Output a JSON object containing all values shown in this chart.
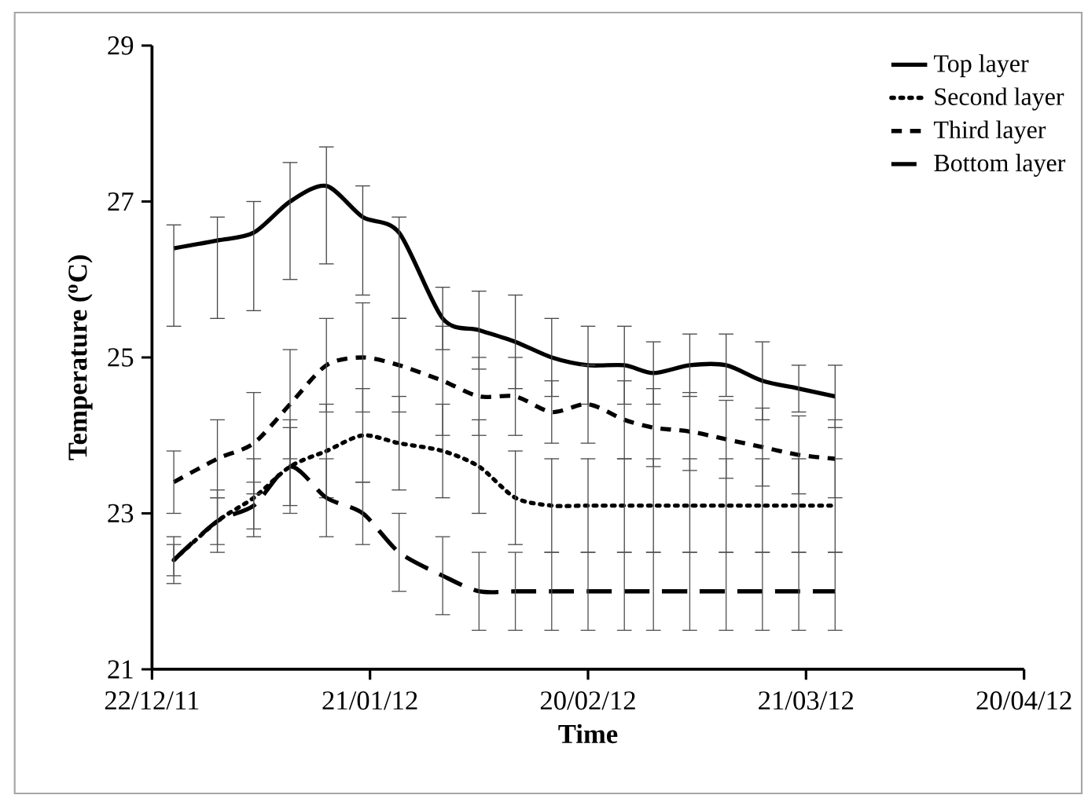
{
  "chart_data": {
    "type": "line",
    "xlabel": "Time",
    "ylabel": "Temperature ($^{o}$C)",
    "x": [
      "2011-12-25",
      "2011-12-31",
      "2012-01-05",
      "2012-01-10",
      "2012-01-15",
      "2012-01-20",
      "2012-01-25",
      "2012-01-31",
      "2012-02-05",
      "2012-02-10",
      "2012-02-15",
      "2012-02-20",
      "2012-02-25",
      "2012-02-29",
      "2012-03-05",
      "2012-03-10",
      "2012-03-15",
      "2012-03-20",
      "2012-03-25"
    ],
    "xlim": [
      "2011-12-22",
      "2012-04-20"
    ],
    "xticks": [
      {
        "value": "2011-12-22",
        "label": "22/12/11"
      },
      {
        "value": "2012-01-21",
        "label": "21/01/12"
      },
      {
        "value": "2012-02-20",
        "label": "20/02/12"
      },
      {
        "value": "2012-03-21",
        "label": "21/03/12"
      },
      {
        "value": "2012-04-20",
        "label": "20/04/12"
      }
    ],
    "ylim": [
      21,
      29
    ],
    "yticks": [
      21,
      23,
      25,
      27,
      29
    ],
    "legend": "top right",
    "grid": false,
    "series": [
      {
        "name": "Top layer",
        "color": "#000000",
        "line_style": "solid",
        "values": [
          26.4,
          26.5,
          26.6,
          27.0,
          27.2,
          26.8,
          26.6,
          25.5,
          25.35,
          25.2,
          25.0,
          24.9,
          24.9,
          24.8,
          24.9,
          24.9,
          24.7,
          24.6,
          24.5
        ],
        "errors": [
          [
            25.4,
            26.7
          ],
          [
            25.5,
            26.8
          ],
          [
            25.6,
            27.0
          ],
          [
            26.0,
            27.5
          ],
          [
            26.2,
            27.7
          ],
          [
            25.8,
            27.2
          ],
          [
            25.5,
            26.8
          ],
          0.4,
          0.5,
          0.6,
          0.5,
          0.5,
          0.5,
          0.4,
          0.4,
          0.4,
          0.5,
          0.3,
          0.4
        ]
      },
      {
        "name": "Second layer",
        "color": "#000000",
        "line_style": "dotted",
        "values": [
          22.4,
          22.9,
          23.2,
          23.6,
          23.8,
          24.0,
          23.9,
          23.8,
          23.6,
          23.2,
          23.1,
          23.1,
          23.1,
          23.1,
          23.1,
          23.1,
          23.1,
          23.1,
          23.1
        ],
        "errors": [
          0.3,
          0.4,
          0.5,
          0.5,
          0.6,
          0.6,
          0.6,
          0.6,
          0.6,
          0.6,
          0.6,
          0.6,
          0.6,
          0.6,
          0.6,
          0.6,
          0.6,
          0.6,
          0.6
        ]
      },
      {
        "name": "Third layer",
        "color": "#000000",
        "line_style": "dashed",
        "values": [
          23.4,
          23.7,
          23.9,
          24.4,
          24.9,
          25.0,
          24.9,
          24.7,
          24.5,
          24.5,
          24.3,
          24.4,
          24.2,
          24.1,
          24.05,
          23.95,
          23.85,
          23.75,
          23.7
        ],
        "errors": [
          0.4,
          0.5,
          0.65,
          0.7,
          0.6,
          0.7,
          0.6,
          0.7,
          0.5,
          0.5,
          0.4,
          0.5,
          0.5,
          0.5,
          0.5,
          0.5,
          0.5,
          0.5,
          0.5
        ]
      },
      {
        "name": "Bottom layer",
        "color": "#000000",
        "line_style": "dashed",
        "values": [
          22.4,
          22.9,
          23.1,
          23.6,
          23.2,
          23.0,
          22.5,
          22.2,
          22.0,
          22.0,
          22.0,
          22.0,
          22.0,
          22.0,
          22.0,
          22.0,
          22.0,
          22.0,
          22.0
        ],
        "errors": [
          0.2,
          0.3,
          0.3,
          0.6,
          0.5,
          0.4,
          0.5,
          0.5,
          0.5,
          0.5,
          0.5,
          0.5,
          0.5,
          0.5,
          0.5,
          0.5,
          0.5,
          0.5,
          0.5
        ]
      }
    ]
  }
}
